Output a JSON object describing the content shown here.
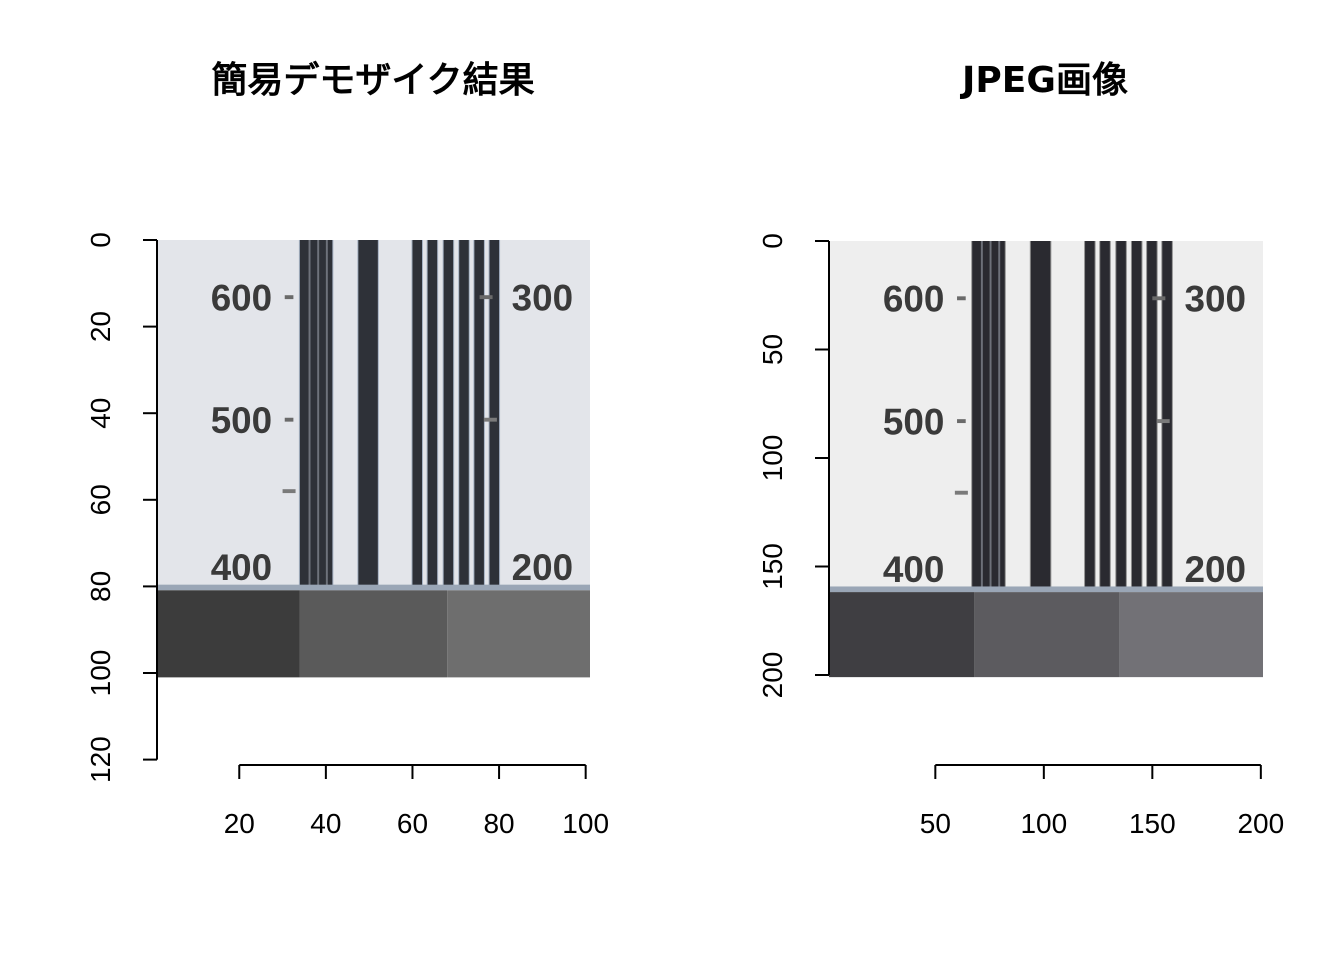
{
  "chart_data": [
    {
      "type": "image",
      "title": "簡易デモザイク結果",
      "x_ticks": [
        20,
        40,
        60,
        80,
        100
      ],
      "y_ticks": [
        0,
        20,
        40,
        60,
        80,
        100,
        120
      ],
      "xlim": [
        1,
        101
      ],
      "ylim": [
        0,
        120
      ],
      "image_extent": {
        "x": [
          1,
          101
        ],
        "y": [
          0,
          101
        ]
      },
      "rows": [
        {
          "y": [
            0,
            80
          ],
          "content": "resolution chart"
        },
        {
          "y": [
            80,
            101
          ],
          "content": "gray patches",
          "colors": [
            "#3c3c3c",
            "#5a5a5a",
            "#6e6e6e"
          ],
          "x_breaks": [
            1,
            34,
            68,
            101
          ]
        }
      ],
      "in_image_labels": [
        "600",
        "500",
        "400",
        "300",
        "200"
      ],
      "palette": {
        "background": "#e3e5ea",
        "bar": "#2e3138",
        "line_fringe": "#7d8fa8"
      }
    },
    {
      "type": "image",
      "title": "JPEG画像",
      "x_ticks": [
        50,
        100,
        150,
        200
      ],
      "y_ticks": [
        0,
        50,
        100,
        150,
        200
      ],
      "xlim": [
        1,
        201
      ],
      "ylim": [
        0,
        200
      ],
      "image_extent": {
        "x": [
          1,
          201
        ],
        "y": [
          0,
          201
        ]
      },
      "rows": [
        {
          "y": [
            0,
            160
          ],
          "content": "resolution chart"
        },
        {
          "y": [
            160,
            201
          ],
          "content": "gray patches",
          "colors": [
            "#3f3e42",
            "#5c5b5f",
            "#727176"
          ],
          "x_breaks": [
            1,
            68,
            135,
            201
          ]
        }
      ],
      "in_image_labels": [
        "600",
        "500",
        "400",
        "300",
        "200"
      ],
      "palette": {
        "background": "#eeeeee",
        "bar": "#2a2a30",
        "line_fringe": "#555"
      }
    }
  ]
}
